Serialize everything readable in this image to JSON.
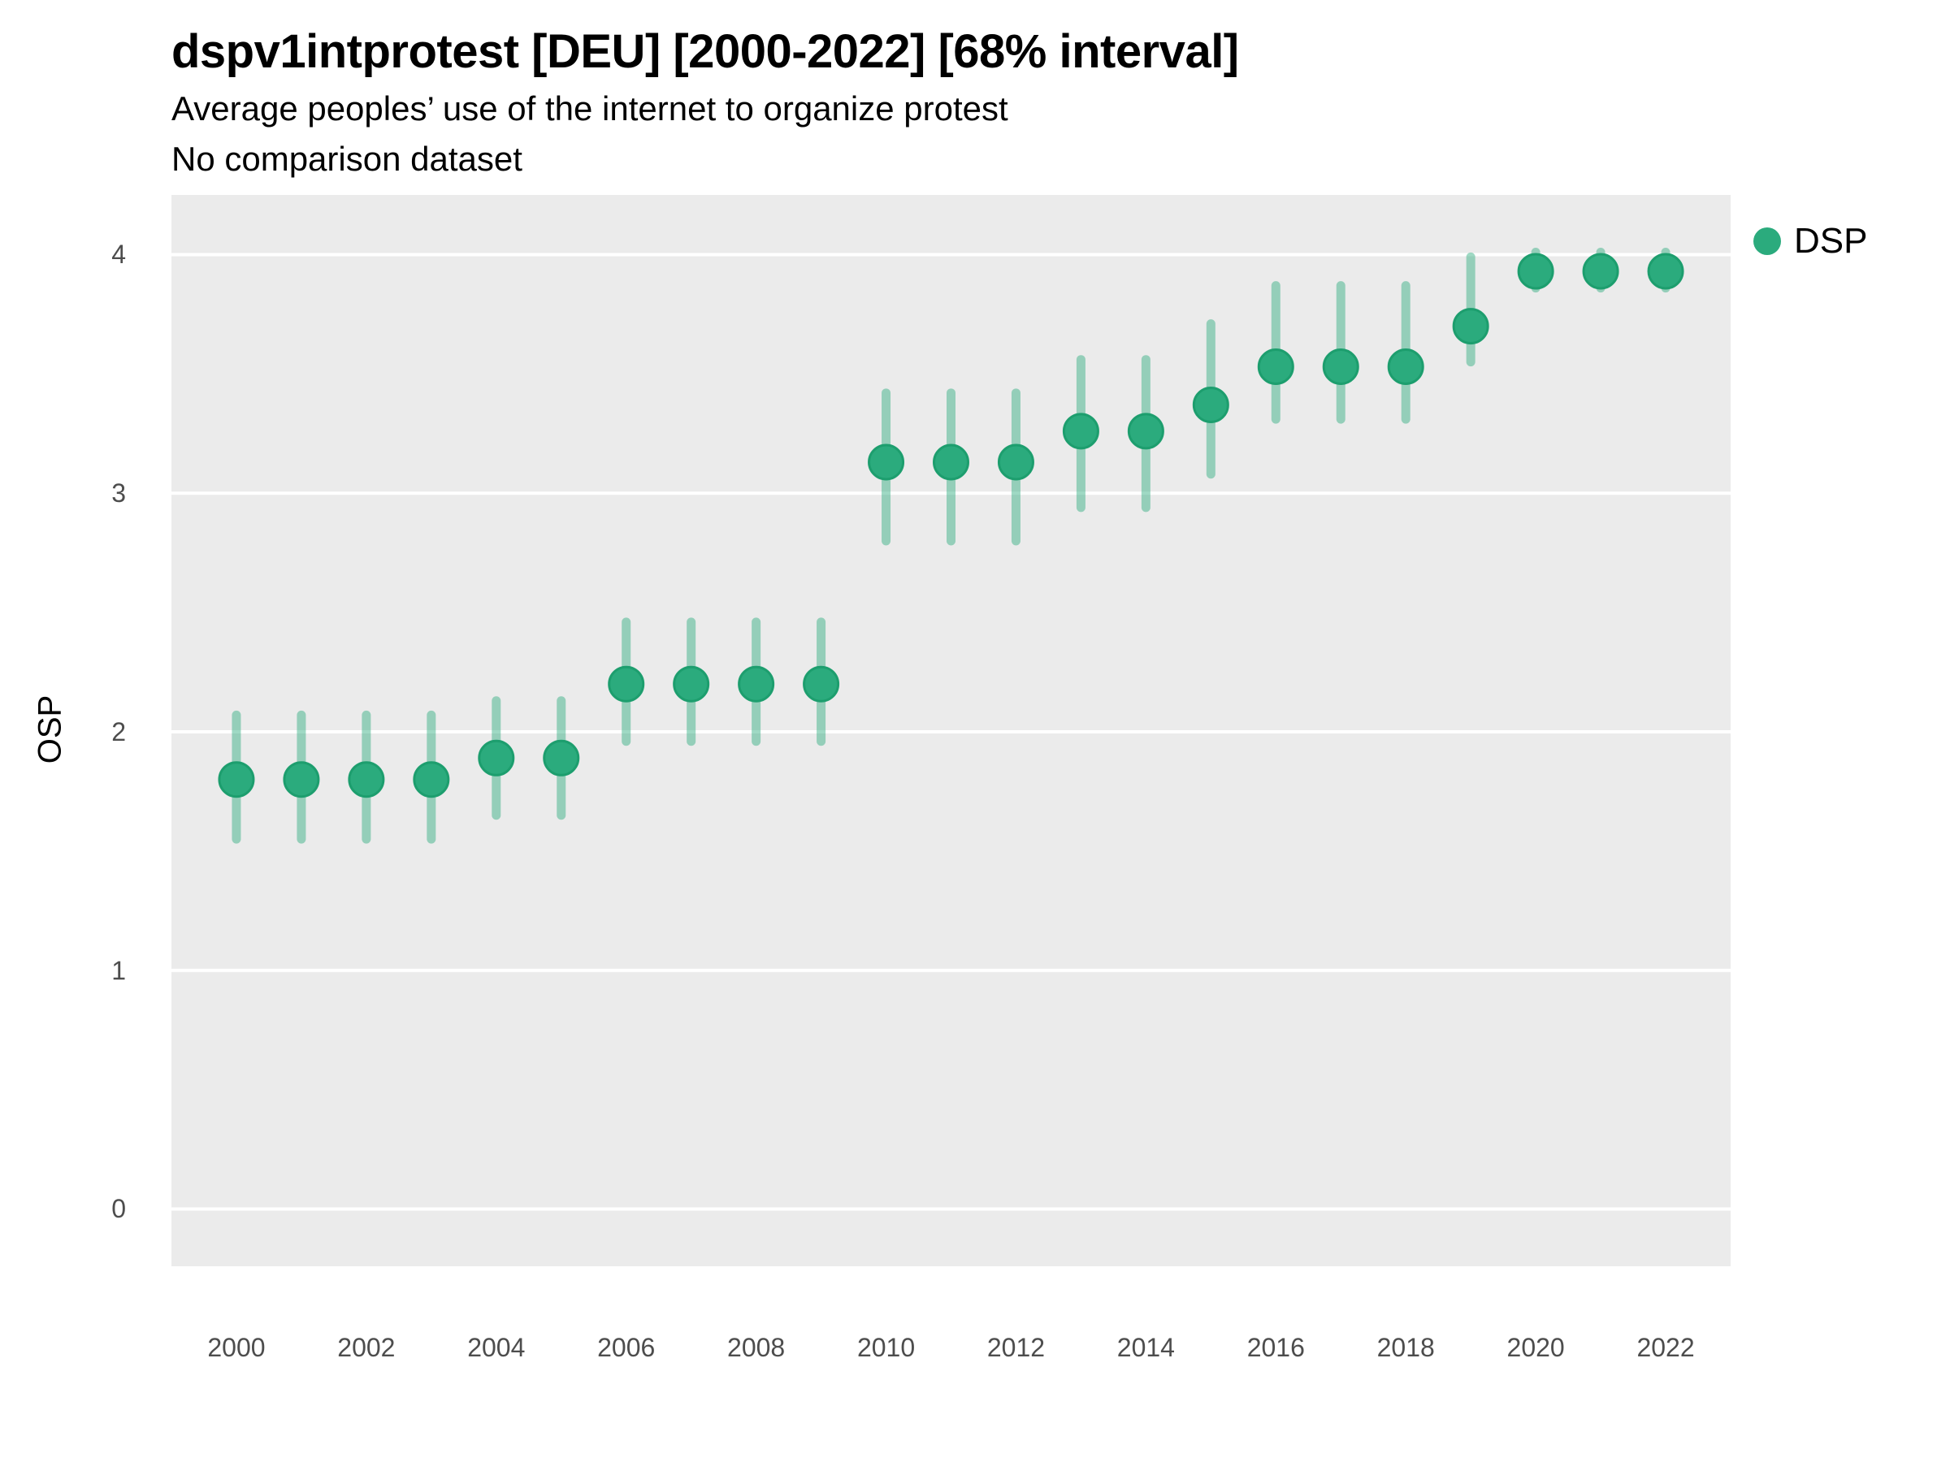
{
  "header": {
    "title": "dspv1intprotest [DEU] [2000-2022] [68% interval]",
    "subtitle": "Average peoples’ use of the internet to organize protest",
    "note": "No comparison dataset"
  },
  "legend": {
    "items": [
      {
        "label": "DSP",
        "color": "#2bab7d"
      }
    ]
  },
  "chart_data": {
    "type": "scatter",
    "subtype": "pointrange",
    "title": "dspv1intprotest [DEU] [2000-2022] [68% interval]",
    "subtitle": "Average peoples’ use of the internet to organize protest",
    "note": "No comparison dataset",
    "xlabel": "",
    "ylabel": "OSP",
    "interval_label": "68% interval",
    "xlim": [
      1999,
      2023
    ],
    "ylim": [
      -0.24,
      4.25
    ],
    "x_ticks": [
      2000,
      2002,
      2004,
      2006,
      2008,
      2010,
      2012,
      2014,
      2016,
      2018,
      2020,
      2022
    ],
    "y_ticks": [
      0,
      1,
      2,
      3,
      4
    ],
    "grid": "horizontal-major-only",
    "grid_color": "#ffffff",
    "panel_bg": "#ebebeb",
    "legend_position": "right-top",
    "series": [
      {
        "name": "DSP",
        "color": "#2bab7d",
        "point_stroke": "#1d9e6e",
        "interval_opacity": 0.45,
        "points": [
          {
            "x": 2000,
            "y": 1.8,
            "lo": 1.55,
            "hi": 2.07
          },
          {
            "x": 2001,
            "y": 1.8,
            "lo": 1.55,
            "hi": 2.07
          },
          {
            "x": 2002,
            "y": 1.8,
            "lo": 1.55,
            "hi": 2.07
          },
          {
            "x": 2003,
            "y": 1.8,
            "lo": 1.55,
            "hi": 2.07
          },
          {
            "x": 2004,
            "y": 1.89,
            "lo": 1.65,
            "hi": 2.13
          },
          {
            "x": 2005,
            "y": 1.89,
            "lo": 1.65,
            "hi": 2.13
          },
          {
            "x": 2006,
            "y": 2.2,
            "lo": 1.96,
            "hi": 2.46
          },
          {
            "x": 2007,
            "y": 2.2,
            "lo": 1.96,
            "hi": 2.46
          },
          {
            "x": 2008,
            "y": 2.2,
            "lo": 1.96,
            "hi": 2.46
          },
          {
            "x": 2009,
            "y": 2.2,
            "lo": 1.96,
            "hi": 2.46
          },
          {
            "x": 2010,
            "y": 3.13,
            "lo": 2.8,
            "hi": 3.42
          },
          {
            "x": 2011,
            "y": 3.13,
            "lo": 2.8,
            "hi": 3.42
          },
          {
            "x": 2012,
            "y": 3.13,
            "lo": 2.8,
            "hi": 3.42
          },
          {
            "x": 2013,
            "y": 3.26,
            "lo": 2.94,
            "hi": 3.56
          },
          {
            "x": 2014,
            "y": 3.26,
            "lo": 2.94,
            "hi": 3.56
          },
          {
            "x": 2015,
            "y": 3.37,
            "lo": 3.08,
            "hi": 3.71
          },
          {
            "x": 2016,
            "y": 3.53,
            "lo": 3.31,
            "hi": 3.87
          },
          {
            "x": 2017,
            "y": 3.53,
            "lo": 3.31,
            "hi": 3.87
          },
          {
            "x": 2018,
            "y": 3.53,
            "lo": 3.31,
            "hi": 3.87
          },
          {
            "x": 2019,
            "y": 3.7,
            "lo": 3.55,
            "hi": 3.99
          },
          {
            "x": 2020,
            "y": 3.93,
            "lo": 3.86,
            "hi": 4.01
          },
          {
            "x": 2021,
            "y": 3.93,
            "lo": 3.86,
            "hi": 4.01
          },
          {
            "x": 2022,
            "y": 3.93,
            "lo": 3.86,
            "hi": 4.01
          }
        ]
      }
    ]
  }
}
